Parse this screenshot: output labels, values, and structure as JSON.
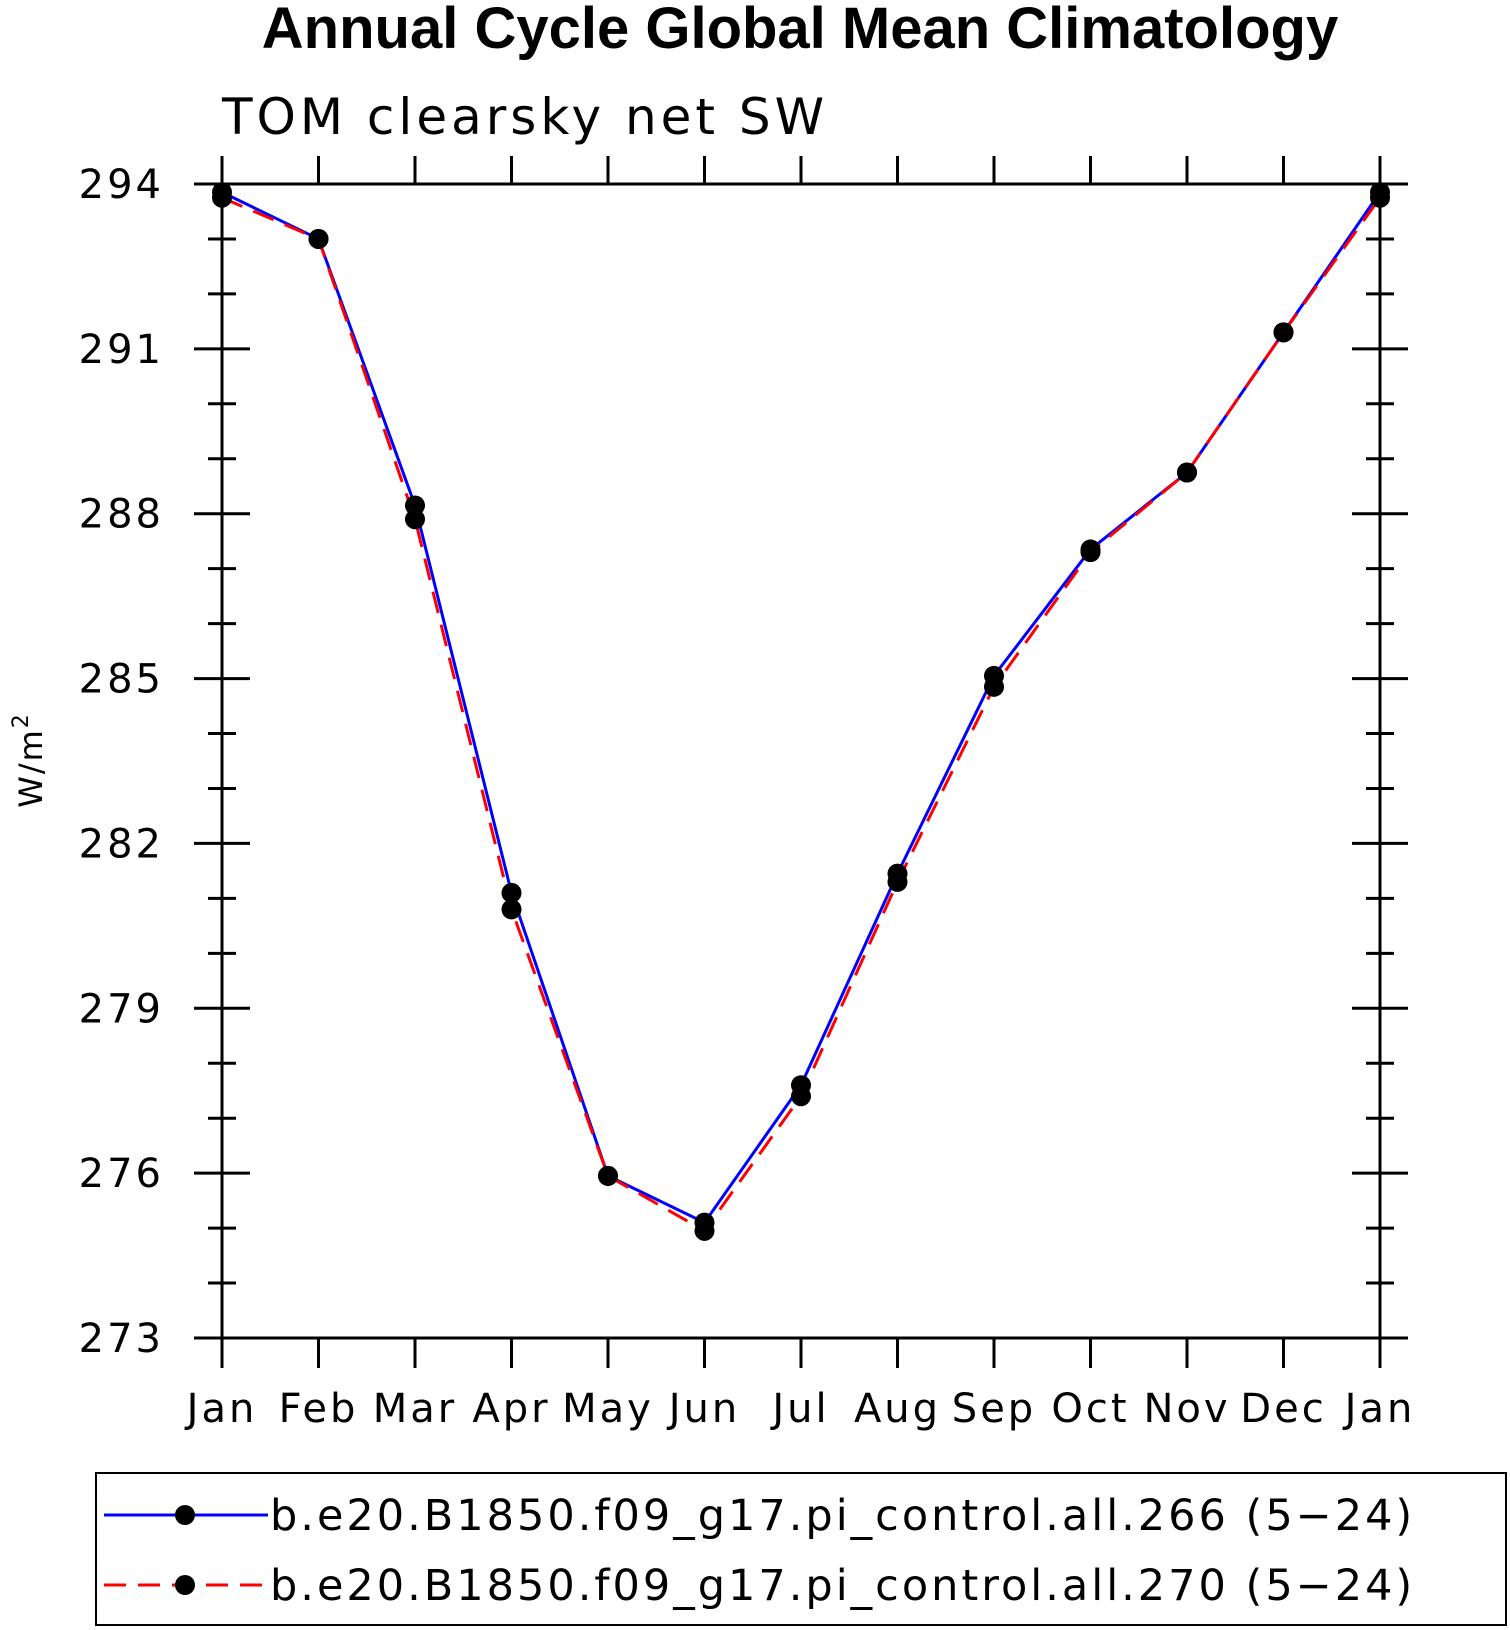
{
  "chart_data": {
    "type": "line",
    "title": "Annual Cycle Global Mean Climatology",
    "subtitle": "TOM clearsky net SW",
    "ylabel": "W/m",
    "ylabel_superscript": "2",
    "xlabel": "",
    "categories": [
      "Jan",
      "Feb",
      "Mar",
      "Apr",
      "May",
      "Jun",
      "Jul",
      "Aug",
      "Sep",
      "Oct",
      "Nov",
      "Dec",
      "Jan"
    ],
    "ylim": [
      273,
      294
    ],
    "yticks": [
      273,
      276,
      279,
      282,
      285,
      288,
      291,
      294
    ],
    "yticklabels": [
      "273",
      "276",
      "279",
      "282",
      "285",
      "288",
      "291",
      "294"
    ],
    "series": [
      {
        "name": "b.e20.B1850.f09_g17.pi_control.all.266 (5−24)",
        "color": "#0000ff",
        "dash": "solid",
        "values": [
          293.85,
          293.0,
          288.15,
          281.1,
          275.95,
          275.1,
          277.6,
          281.45,
          285.05,
          287.35,
          288.75,
          291.3,
          293.85
        ]
      },
      {
        "name": "b.e20.B1850.f09_g17.pi_control.all.270 (5−24)",
        "color": "#ff0000",
        "dash": "dashed",
        "values": [
          293.75,
          293.0,
          287.9,
          280.8,
          275.95,
          274.95,
          277.4,
          281.3,
          284.85,
          287.3,
          288.75,
          291.3,
          293.75
        ]
      }
    ],
    "legend_position": "bottom"
  }
}
